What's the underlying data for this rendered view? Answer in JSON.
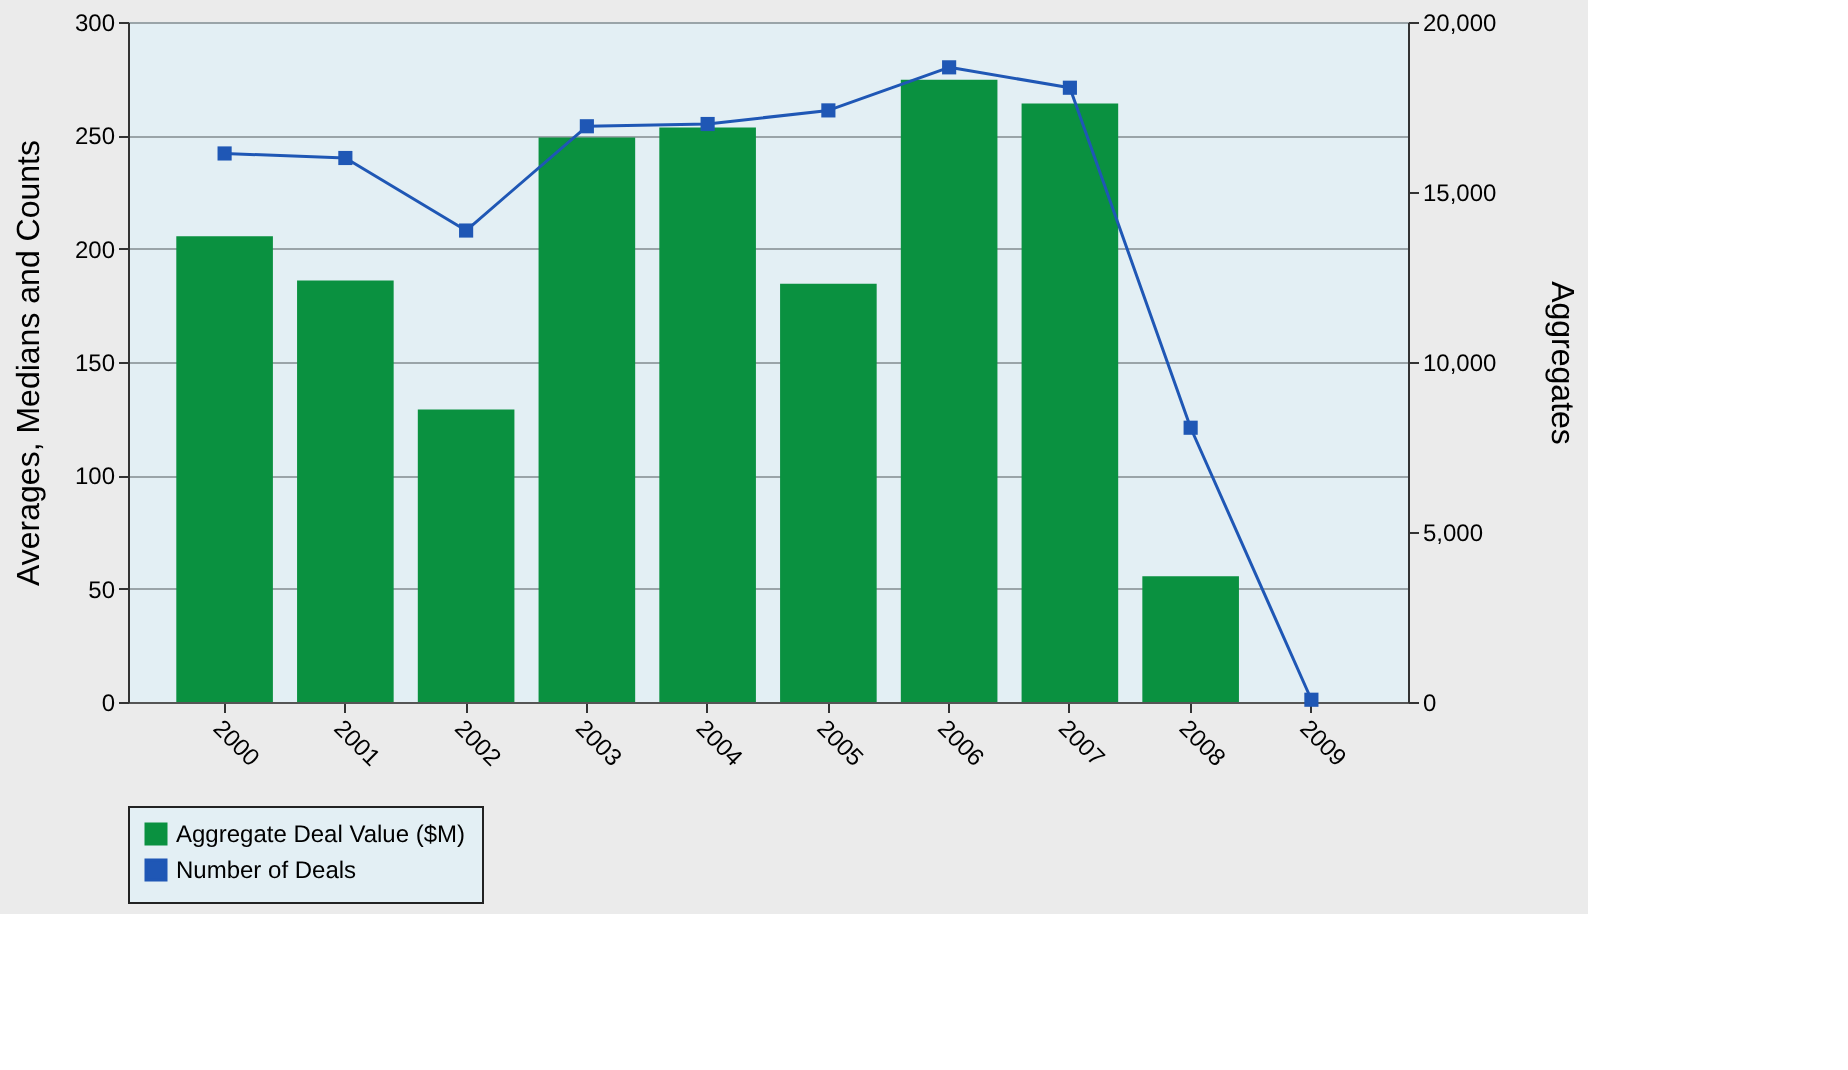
{
  "chart_data": {
    "type": "bar",
    "categories": [
      "2000",
      "2001",
      "2002",
      "2003",
      "2004",
      "2005",
      "2006",
      "2007",
      "2008",
      "2009"
    ],
    "series": [
      {
        "name": "Aggregate Deal Value ($M)",
        "color": "#0a9140",
        "axis": "y2",
        "values": [
          13700,
          12400,
          8600,
          16600,
          16900,
          12300,
          18300,
          17600,
          3700,
          null
        ]
      },
      {
        "name": "Number of Deals",
        "color": "#1f57b5",
        "type": "line",
        "marker": "square",
        "values": [
          242,
          240,
          208,
          254,
          255,
          261,
          280,
          271,
          121,
          1
        ]
      }
    ],
    "ylabel": "Averages, Medians and Counts",
    "y2label": "Aggregates",
    "ylim": [
      0,
      300
    ],
    "yticks": [
      0,
      50,
      100,
      150,
      200,
      250,
      300
    ],
    "y2lim": [
      0,
      20000
    ],
    "y2ticks": [
      {
        "value": 0,
        "label": "0"
      },
      {
        "value": 5000,
        "label": "5,000"
      },
      {
        "value": 10000,
        "label": "10,000"
      },
      {
        "value": 15000,
        "label": "15,000"
      },
      {
        "value": 20000,
        "label": "20,000"
      }
    ],
    "grid": "y",
    "legend": "bottom"
  }
}
